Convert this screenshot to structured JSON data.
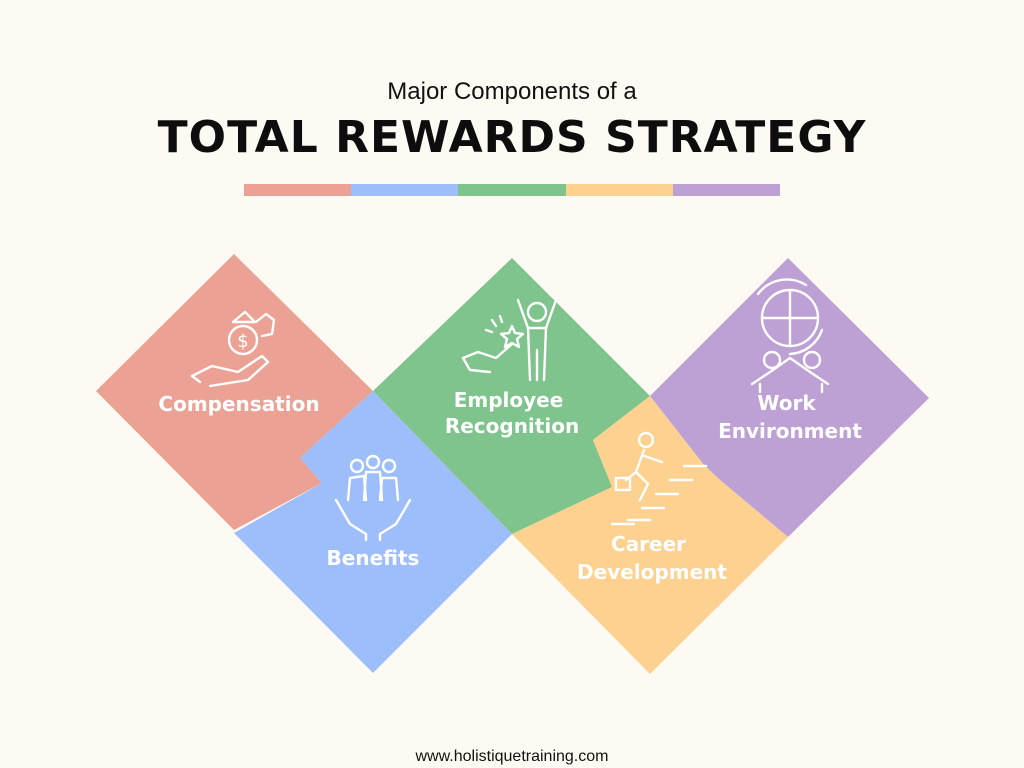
{
  "header": {
    "subtitle": "Major Components of a",
    "title": "TOTAL REWARDS STRATEGY"
  },
  "color_bar": [
    "#eba294",
    "#9dbefb",
    "#7ec48c",
    "#fdd18f",
    "#bda0d4"
  ],
  "components": [
    {
      "label_lines": [
        "Compensation"
      ],
      "color": "#eba294",
      "icon": "money-bag-hand-icon"
    },
    {
      "label_lines": [
        "Benefits"
      ],
      "color": "#9dbefb",
      "icon": "people-in-hands-icon"
    },
    {
      "label_lines": [
        "Employee",
        "Recognition"
      ],
      "color": "#7ec48c",
      "icon": "celebrating-person-star-icon"
    },
    {
      "label_lines": [
        "Career",
        "Development"
      ],
      "color": "#fdd18f",
      "icon": "person-climbing-stairs-icon"
    },
    {
      "label_lines": [
        "Work",
        "Environment"
      ],
      "color": "#bda0d4",
      "icon": "puzzle-team-icon"
    }
  ],
  "footer": {
    "url": "www.holistiquetraining.com"
  }
}
